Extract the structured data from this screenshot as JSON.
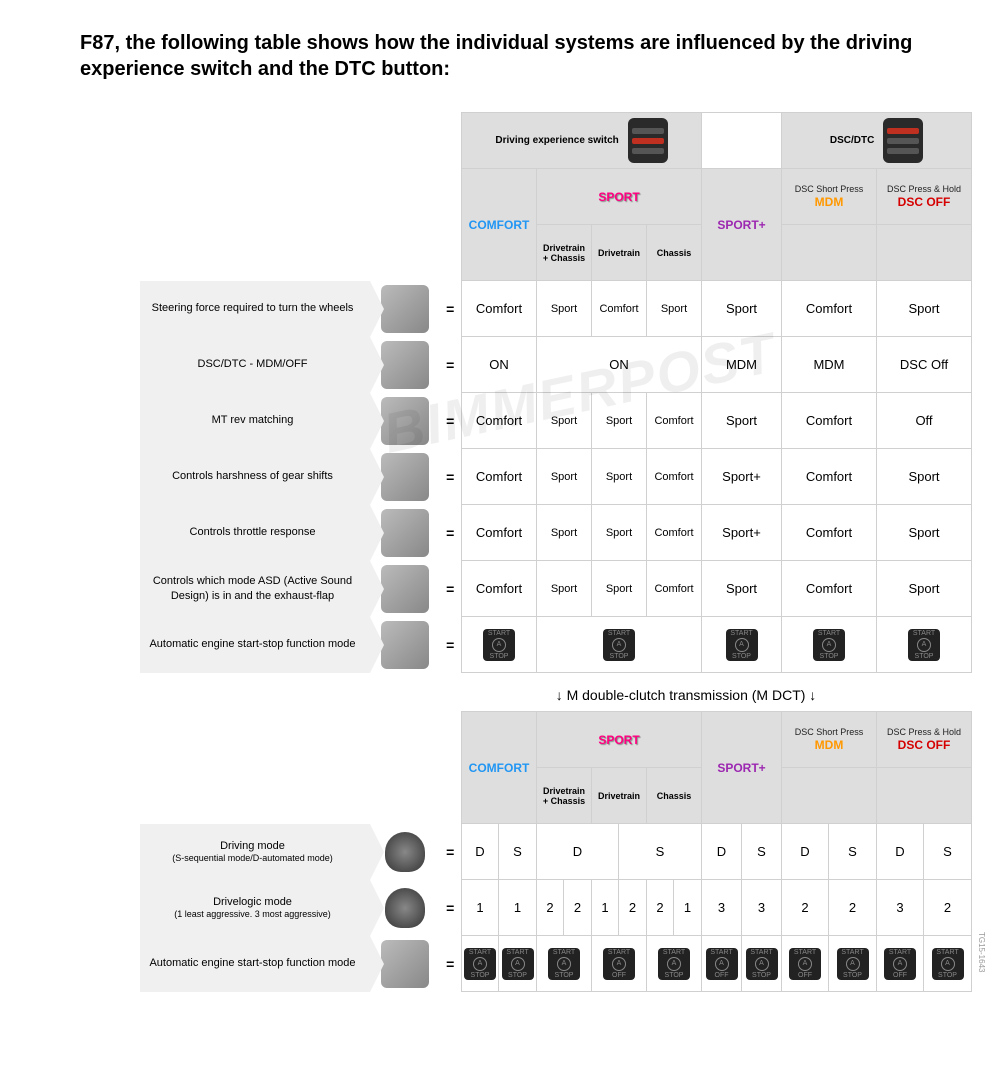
{
  "title": "F87, the following table shows how the individual systems are influenced by the driving experience switch and the DTC button:",
  "topheaders": {
    "driving_exp": "Driving experience switch",
    "dsc_dtc": "DSC/DTC"
  },
  "modeheaders": {
    "comfort": "COMFORT",
    "sport": "SPORT",
    "sportp": "SPORT+",
    "mdm_top": "DSC Short Press",
    "mdm": "MDM",
    "dscoff_top": "DSC Press & Hold",
    "dscoff": "DSC OFF",
    "sub1": "Drivetrain + Chassis",
    "sub2": "Drivetrain",
    "sub3": "Chassis"
  },
  "rows1": [
    {
      "label": "Steering force required to turn the wheels",
      "cells": [
        "Comfort",
        "Sport",
        "Comfort",
        "Sport",
        "Sport",
        "Comfort",
        "Sport"
      ]
    },
    {
      "label": "DSC/DTC - MDM/OFF",
      "cells": [
        "ON",
        "ON-span3",
        "",
        "",
        "MDM",
        "MDM",
        "DSC Off"
      ]
    },
    {
      "label": "MT rev matching",
      "cells": [
        "Comfort",
        "Sport",
        "Sport",
        "Comfort",
        "Sport",
        "Comfort",
        "Off"
      ]
    },
    {
      "label": "Controls harshness of gear shifts",
      "cells": [
        "Comfort",
        "Sport",
        "Sport",
        "Comfort",
        "Sport+",
        "Comfort",
        "Sport"
      ]
    },
    {
      "label": "Controls throttle response",
      "cells": [
        "Comfort",
        "Sport",
        "Sport",
        "Comfort",
        "Sport+",
        "Comfort",
        "Sport"
      ]
    },
    {
      "label": "Controls which mode ASD (Active Sound Design) is in and the exhaust-flap",
      "cells": [
        "Comfort",
        "Sport",
        "Sport",
        "Comfort",
        "Sport",
        "Comfort",
        "Sport"
      ]
    },
    {
      "label": "Automatic engine start-stop function mode",
      "startstop": true
    }
  ],
  "dct_title": "↓ M double-clutch transmission (M DCT) ↓",
  "rows2": [
    {
      "label": "Driving mode",
      "sub": "(S-sequential mode/D-automated mode)",
      "pairs": [
        [
          "D",
          "S"
        ],
        [
          "D-span2",
          ""
        ],
        [
          "S-span2",
          ""
        ],
        [
          "D",
          "S"
        ],
        [
          "D",
          "S"
        ],
        [
          "D",
          "S"
        ]
      ]
    },
    {
      "label": "Drivelogic mode",
      "sub": "(1 least aggressive. 3 most aggressive)",
      "vals": [
        "1",
        "1",
        "2",
        "2",
        "1",
        "2",
        "2",
        "1",
        "3",
        "3",
        "2",
        "2",
        "3",
        "2"
      ]
    },
    {
      "label": "Automatic engine start-stop function mode",
      "startstop_pairs": true
    }
  ],
  "startstop_label_top": "START",
  "startstop_label_mid": "A",
  "startstop_label_bot": "STOP",
  "startstop_label_off": "OFF",
  "watermark": "BIMMERPOST",
  "sidecode": "TG15-1643",
  "colors": {
    "comfort": "#2196f3",
    "sport": "#ff0080",
    "sportp": "#9c27b0",
    "mdm": "#ff9800",
    "dscoff": "#d50000",
    "hdr_bg": "#dededf",
    "row_bg": "#f0f0f0",
    "border": "#d0d0d0"
  },
  "colwidths": {
    "comfort": 75,
    "sport_sub": 55,
    "sportp": 80,
    "mdm": 95,
    "dscoff": 95
  }
}
